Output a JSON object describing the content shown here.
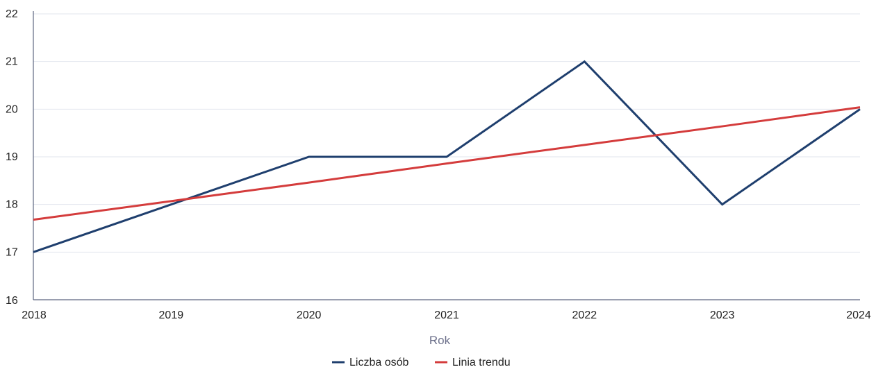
{
  "chart_data": {
    "type": "line",
    "title": "",
    "xlabel": "Rok",
    "ylabel": "",
    "x": [
      2018,
      2019,
      2020,
      2021,
      2022,
      2023,
      2024
    ],
    "xlim": [
      2018,
      2024
    ],
    "ylim": [
      16,
      22
    ],
    "yticks": [
      16,
      17,
      18,
      19,
      20,
      21,
      22
    ],
    "grid": true,
    "legend_position": "bottom-center",
    "series": [
      {
        "name": "Liczba osób",
        "color": "#1f3f6e",
        "values": [
          17,
          18,
          19,
          19,
          21,
          18,
          20
        ]
      },
      {
        "name": "Linia trendu",
        "color": "#d43c3c",
        "values": [
          17.68,
          18.07,
          18.46,
          18.86,
          19.25,
          19.64,
          20.04
        ]
      }
    ]
  }
}
